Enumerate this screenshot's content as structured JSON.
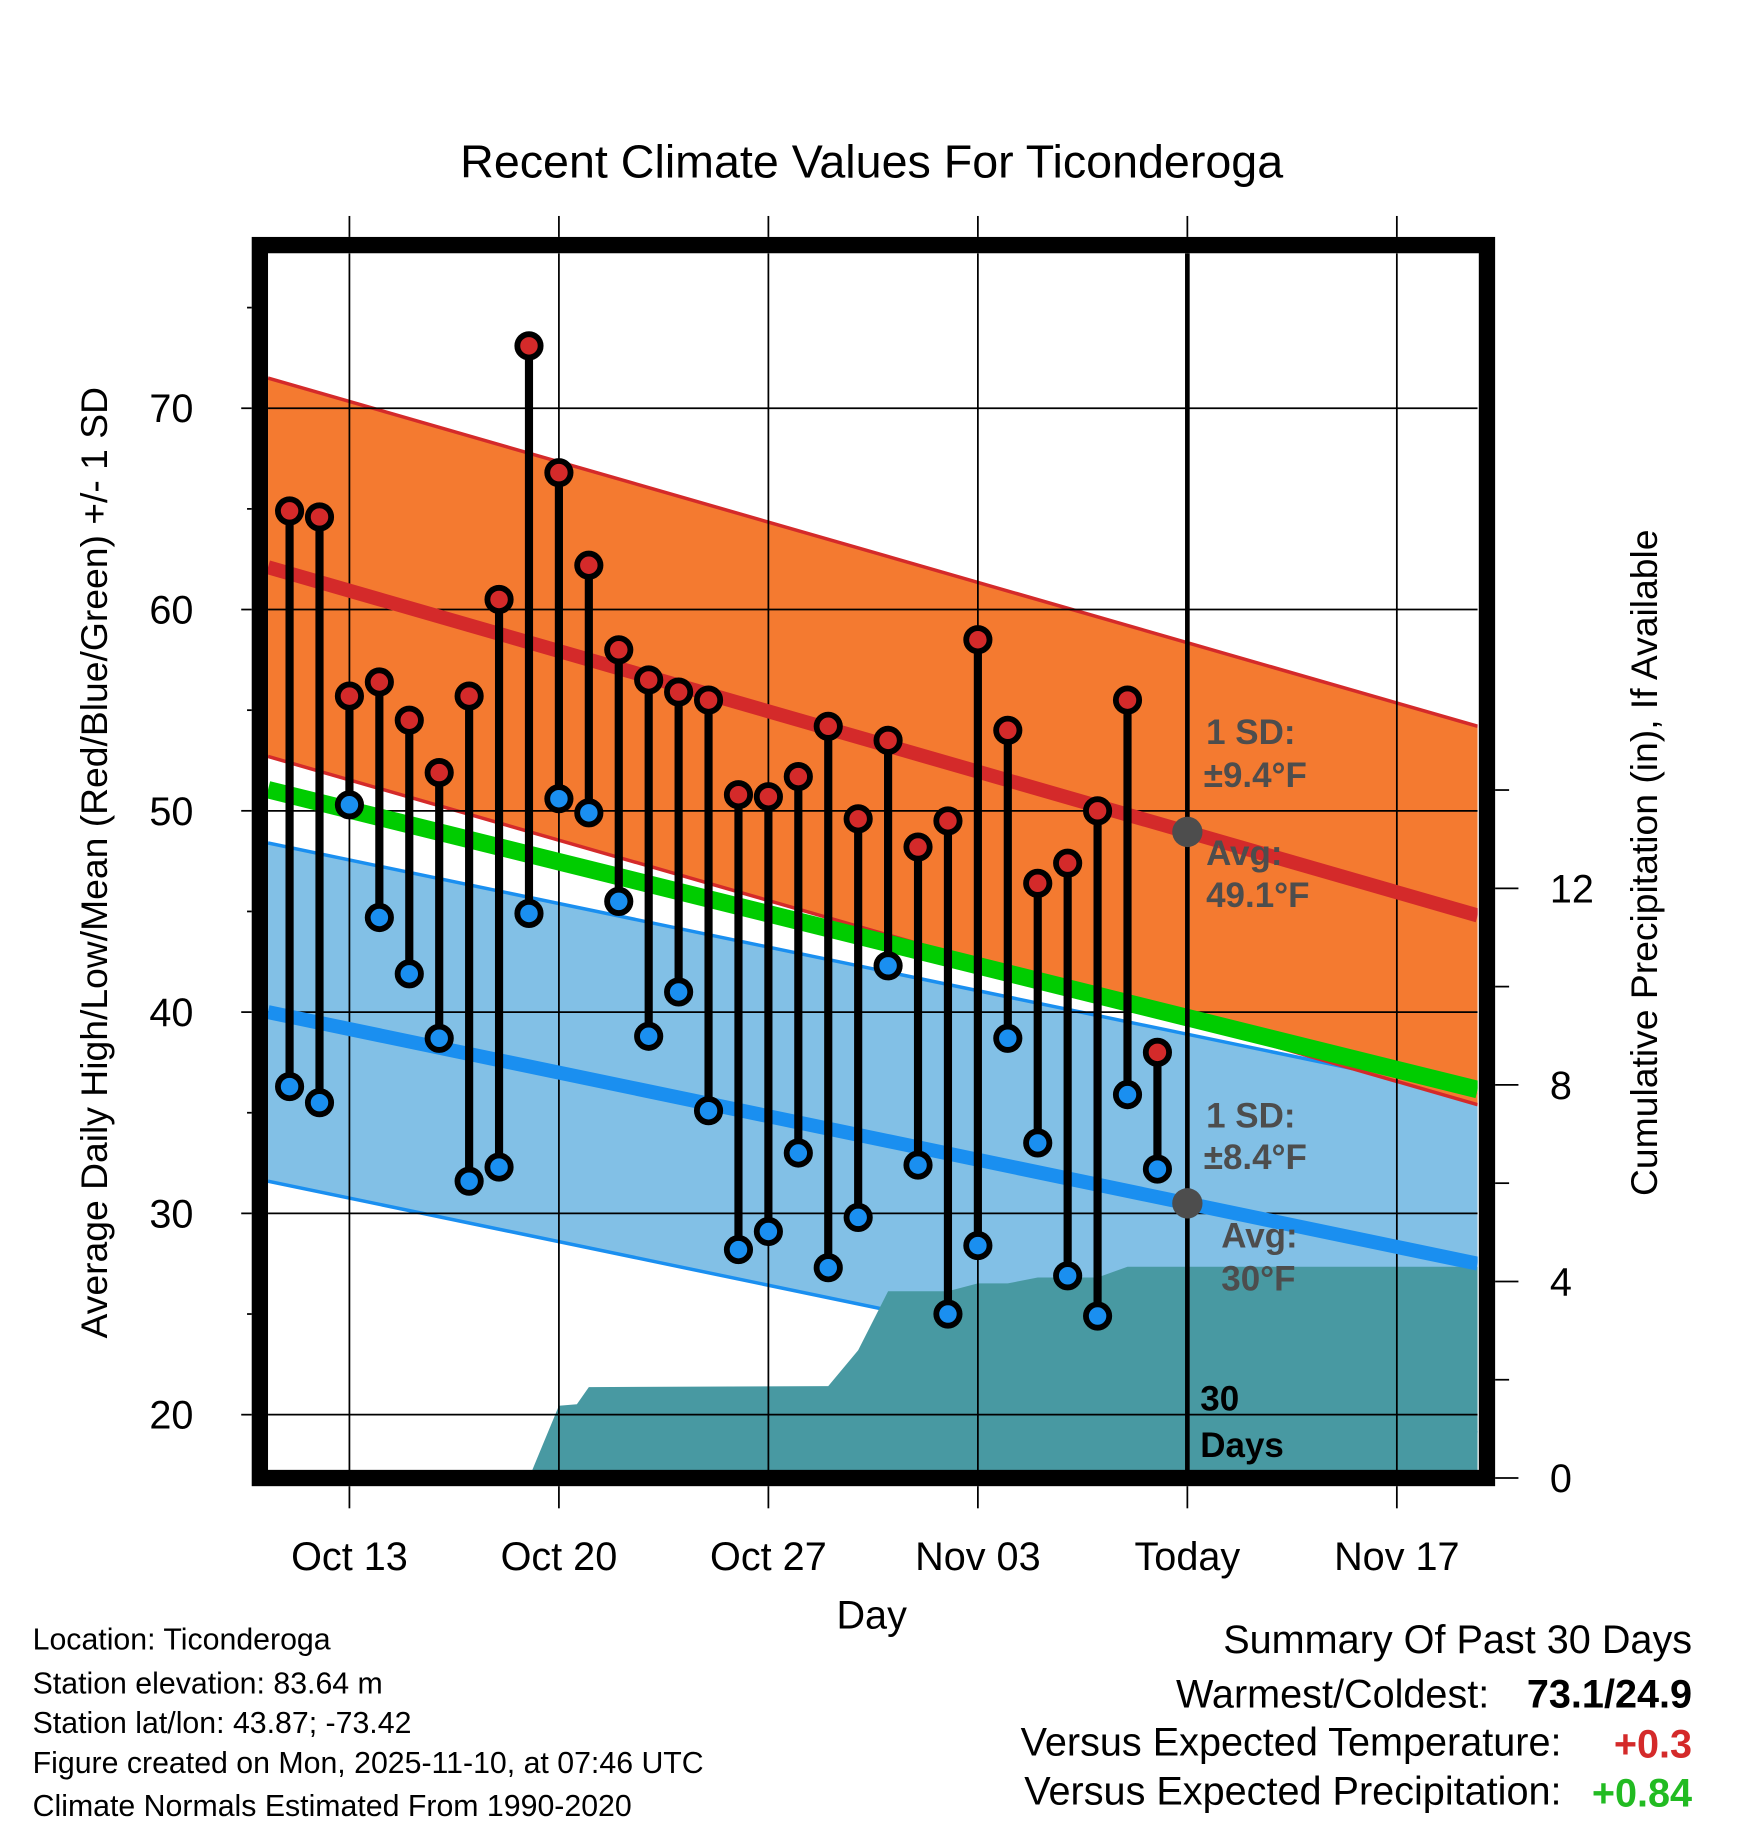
{
  "chart_data": {
    "type": "line",
    "title": "Recent Climate Values For Ticonderoga",
    "xlabel": "Day",
    "ylabel": "Average Daily High/Low/Mean (Red/Blue/Green) +/- 1 SD",
    "ylabel_right": "Cumulative Precipitation (in), If Available",
    "x_units": "days since Oct 13",
    "xlim": [
      -2.72,
      37.7
    ],
    "ylim": [
      17.2,
      77.7
    ],
    "ylim_right": [
      0,
      24.6
    ],
    "x_ticks": [
      {
        "day": 0,
        "label": "Oct 13"
      },
      {
        "day": 7,
        "label": "Oct 20"
      },
      {
        "day": 14,
        "label": "Oct 27"
      },
      {
        "day": 21,
        "label": "Nov 03"
      },
      {
        "day": 28,
        "label": "Today"
      },
      {
        "day": 35,
        "label": "Nov 17"
      }
    ],
    "y_ticks": [
      20,
      30,
      40,
      50,
      60,
      70
    ],
    "y_ticks_right": [
      0,
      4,
      8,
      12
    ],
    "grid": true,
    "today_day": 28,
    "normals": {
      "days": [
        -2.72,
        37.7
      ],
      "avg_high": [
        62.1,
        44.8
      ],
      "avg_low": [
        40.0,
        27.5
      ],
      "high_sd": 9.4,
      "low_sd": 8.4
    },
    "observations": {
      "start_day": -2,
      "highs": [
        64.9,
        64.6,
        55.7,
        56.4,
        54.5,
        51.9,
        55.7,
        60.5,
        73.1,
        66.8,
        62.2,
        58.0,
        56.5,
        55.9,
        55.5,
        50.8,
        50.7,
        51.7,
        54.2,
        49.6,
        53.5,
        48.2,
        49.5,
        58.5,
        54.0,
        46.4,
        47.4,
        50.0,
        55.5,
        38.0
      ],
      "lows": [
        36.3,
        35.5,
        50.3,
        44.7,
        41.9,
        38.7,
        31.6,
        32.3,
        44.9,
        50.6,
        49.9,
        45.5,
        38.8,
        41.0,
        35.1,
        28.2,
        29.1,
        33.0,
        27.3,
        29.8,
        42.3,
        32.4,
        25.0,
        28.4,
        38.7,
        33.5,
        26.9,
        24.9,
        35.9,
        32.2
      ]
    },
    "precip_cumulative": [
      [
        6.0,
        0
      ],
      [
        7.0,
        1.47
      ],
      [
        7.6,
        1.5
      ],
      [
        8.0,
        1.85
      ],
      [
        16.0,
        1.87
      ],
      [
        17.0,
        2.6
      ],
      [
        18.0,
        3.8
      ],
      [
        20.0,
        3.8
      ],
      [
        21.0,
        3.96
      ],
      [
        22.0,
        3.96
      ],
      [
        23.0,
        4.08
      ],
      [
        25.0,
        4.08
      ],
      [
        26.0,
        4.3
      ],
      [
        37.7,
        4.3
      ]
    ],
    "annotations": {
      "high_sd_1": "1 SD:",
      "high_sd_2": "±9.4°F",
      "high_avg_1": "Avg:",
      "high_avg_2": "49.1°F",
      "low_sd_1": "1 SD:",
      "low_sd_2": "±8.4°F",
      "low_avg_1": "Avg:",
      "low_avg_2": "30°F",
      "days_1": "30",
      "days_2": "Days"
    }
  },
  "colors": {
    "high": "#d42a2a",
    "high_band": "#f47a30",
    "low": "#1a8ff0",
    "low_band": "#82c0e6",
    "mean": "#00cc00",
    "precip": "#4899a2",
    "annotation": "#4d4d4d",
    "positive_temp": "#d42a2a",
    "positive_precip": "#22bb22"
  },
  "info": {
    "location": "Location: Ticonderoga",
    "elevation": "Station elevation: 83.64 m",
    "latlon": "Station lat/lon: 43.87; -73.42",
    "created": "Figure created on Mon, 2025-11-10, at 07:46 UTC",
    "normals": "Climate Normals Estimated From 1990-2020"
  },
  "summary": {
    "title": "Summary Of Past 30 Days",
    "warmest_label": "Warmest/Coldest:",
    "warmest_value": "73.1/24.9",
    "temp_label": "Versus Expected Temperature:",
    "temp_value": "+0.3",
    "precip_label": "Versus Expected Precipitation:",
    "precip_value": "+0.84"
  }
}
